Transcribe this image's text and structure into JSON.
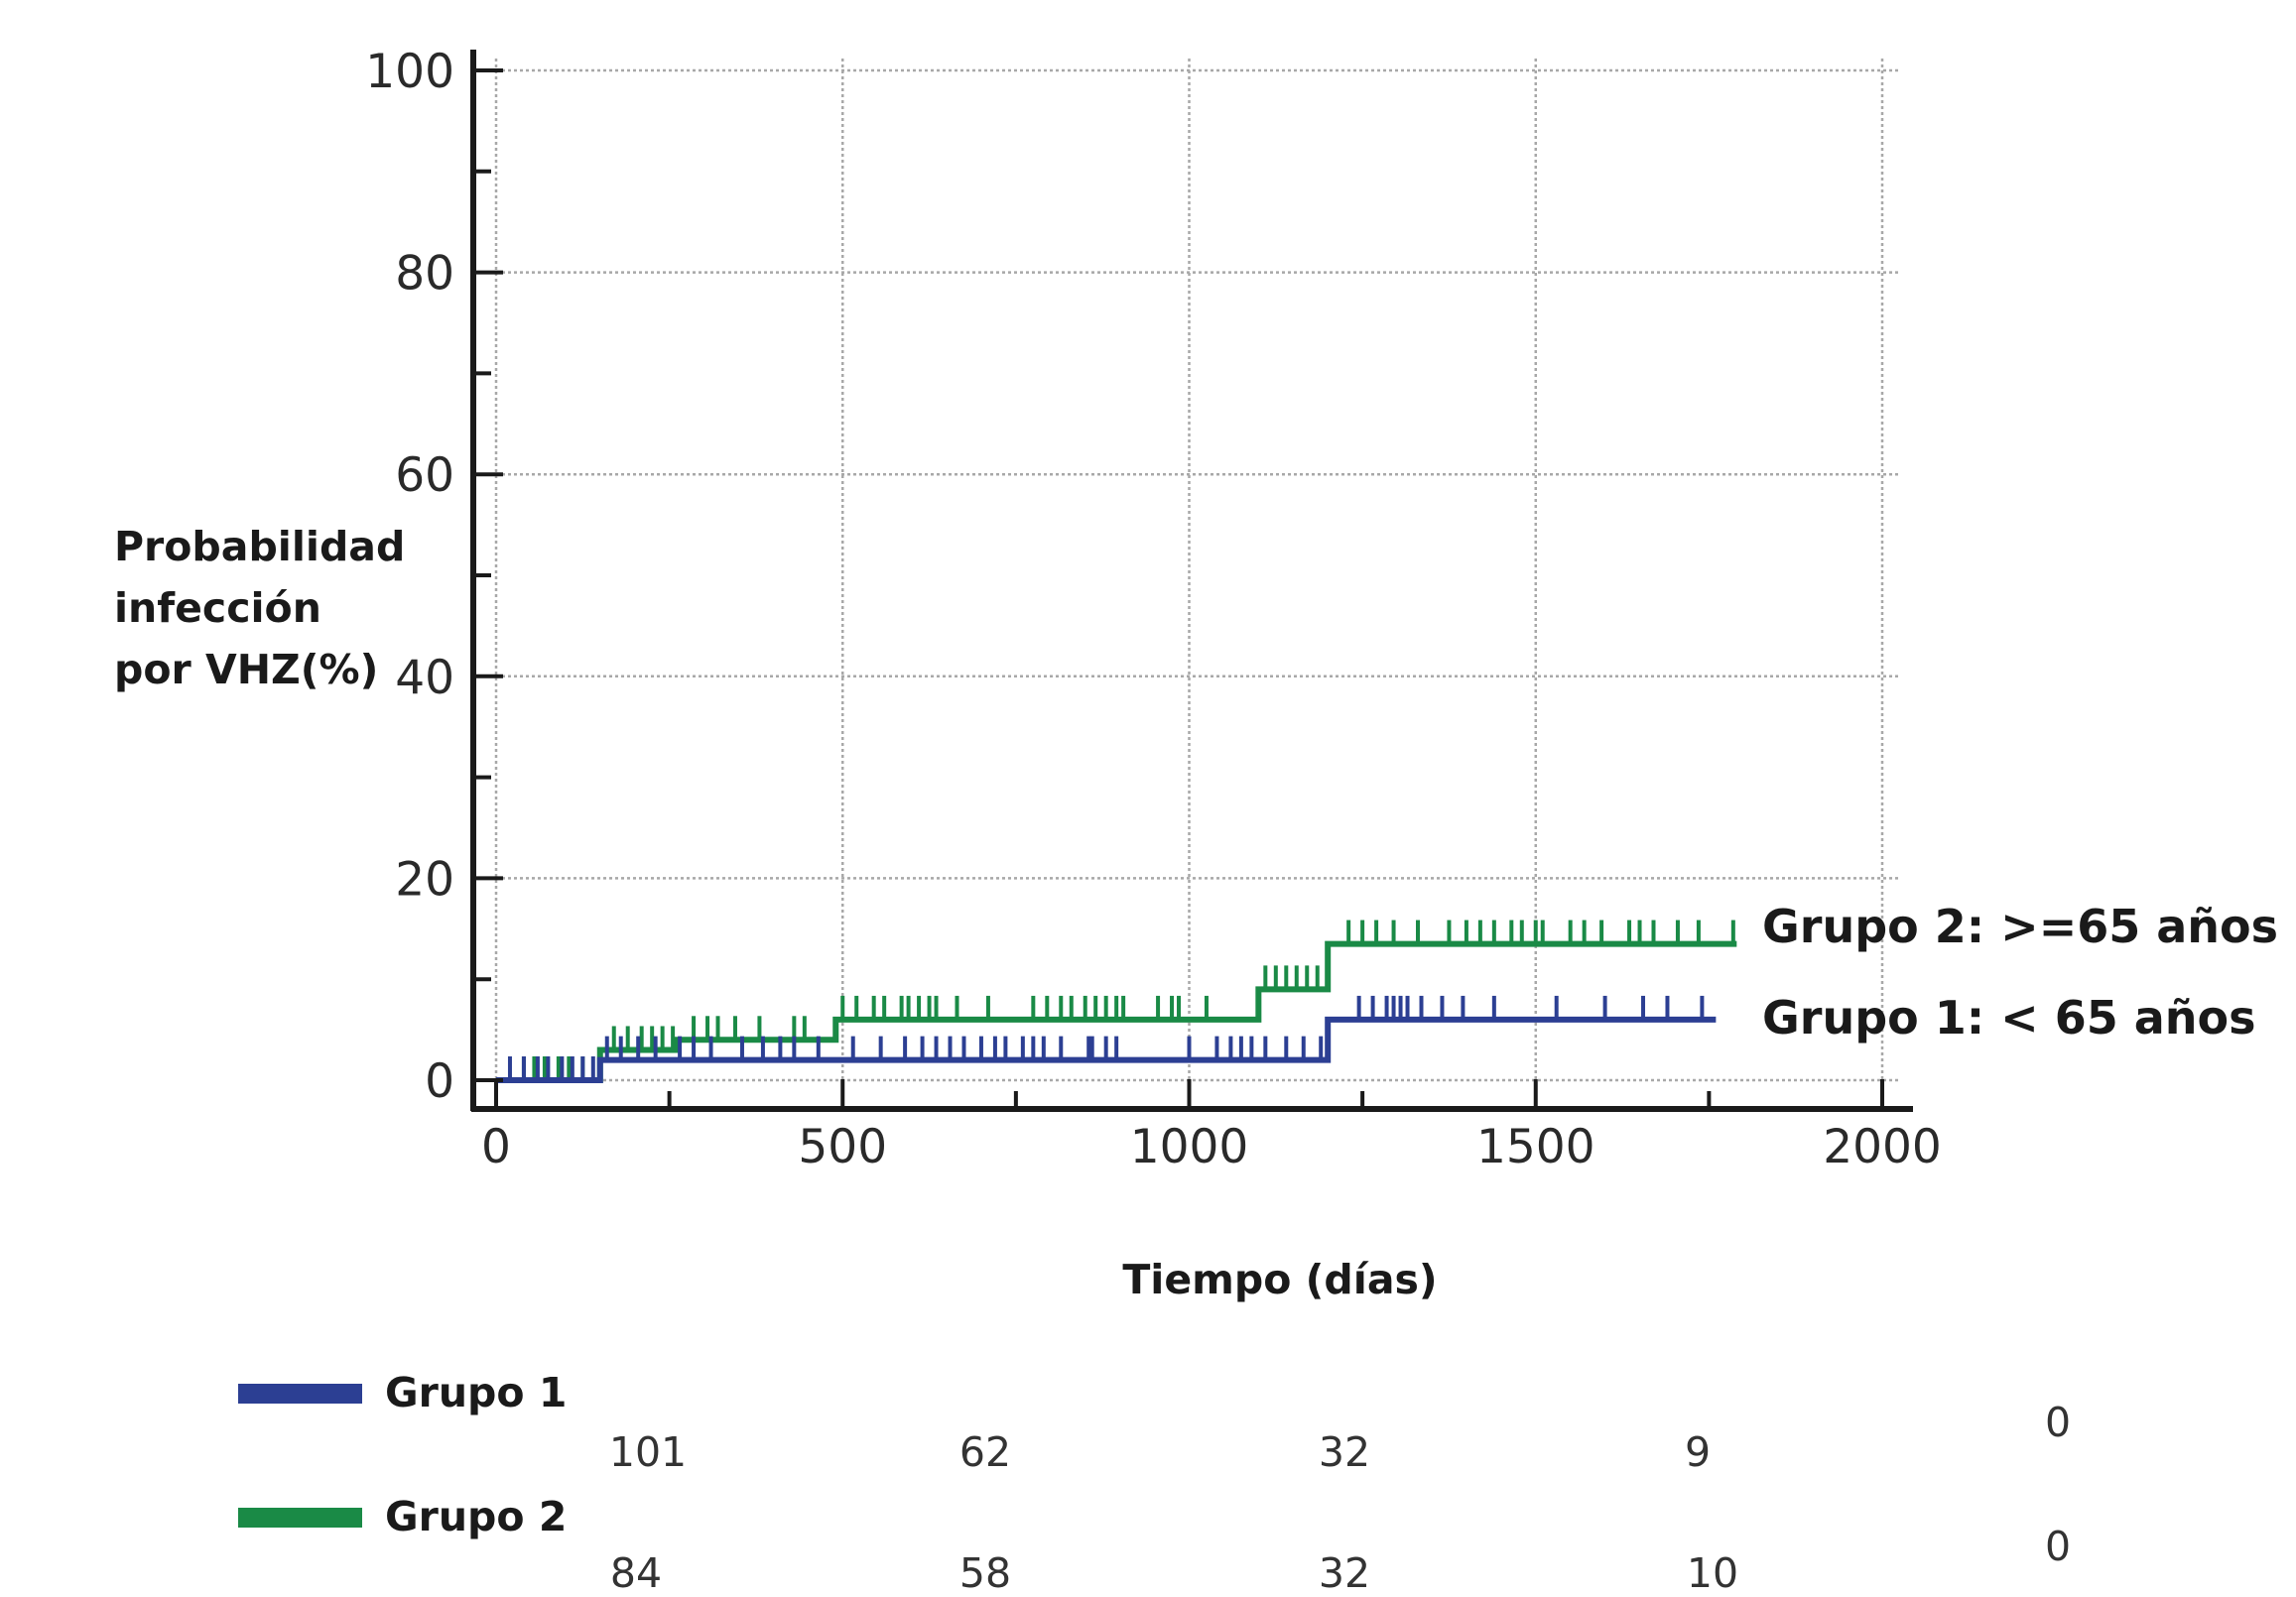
{
  "colors": {
    "grupo1": "#2c3f93",
    "grupo2": "#1a8a46",
    "axis": "#1a1a1a",
    "grid": "#a8a8a8"
  },
  "chart_data": {
    "type": "line",
    "subtype": "kaplan-meier-step",
    "ylabel": "Probabilidad\ninfección\npor VHZ(%)",
    "xlabel": "Tiempo (días)",
    "xlim": [
      0,
      2000
    ],
    "ylim": [
      0,
      100
    ],
    "xticks": [
      0,
      500,
      1000,
      1500,
      2000
    ],
    "xtick_labels": [
      "0",
      "500",
      "1000",
      "1500",
      "2000"
    ],
    "yticks": [
      0,
      20,
      40,
      60,
      80,
      100
    ],
    "ytick_labels": [
      "0",
      "20",
      "40",
      "60",
      "80",
      "100"
    ],
    "grid": true,
    "series": [
      {
        "name": "Grupo 1: < 65 años",
        "color": "#2c3f93",
        "steps": [
          [
            0,
            0
          ],
          [
            150,
            2
          ],
          [
            1200,
            2
          ],
          [
            1200,
            6
          ],
          [
            1760,
            6
          ]
        ],
        "censored": [
          {
            "x": [
              20,
              40,
              60,
              75,
              95,
              110,
              125,
              140
            ],
            "y": 0
          },
          {
            "x": [
              160,
              180,
              205,
              230,
              265,
              285,
              310,
              355,
              385,
              410,
              430,
              465,
              515,
              555,
              590,
              615,
              635,
              655,
              675,
              700,
              720,
              735,
              760,
              775,
              790,
              815,
              855,
              860,
              880,
              895,
              1000,
              1040,
              1060,
              1075,
              1090,
              1110,
              1140,
              1165,
              1190
            ],
            "y": 2
          },
          {
            "x": [
              1245,
              1265,
              1285,
              1295,
              1305,
              1315,
              1335,
              1365,
              1395,
              1440,
              1530,
              1600,
              1655,
              1690,
              1740
            ],
            "y": 6
          }
        ]
      },
      {
        "name": "Grupo 2: >=65 años",
        "color": "#1a8a46",
        "steps": [
          [
            0,
            0
          ],
          [
            150,
            0
          ],
          [
            150,
            3
          ],
          [
            260,
            3
          ],
          [
            260,
            4
          ],
          [
            490,
            4
          ],
          [
            490,
            6
          ],
          [
            1100,
            6
          ],
          [
            1100,
            9
          ],
          [
            1200,
            9
          ],
          [
            1200,
            13.5
          ],
          [
            1790,
            13.5
          ]
        ],
        "censored": [
          {
            "x": [
              40,
              55,
              70,
              90,
              105,
              125
            ],
            "y": 0
          },
          {
            "x": [
              170,
              190,
              210,
              225,
              240,
              255
            ],
            "y": 3
          },
          {
            "x": [
              285,
              305,
              320,
              345,
              380,
              430,
              445
            ],
            "y": 4
          },
          {
            "x": [
              500,
              520,
              545,
              560,
              585,
              595,
              610,
              625,
              635,
              665,
              710,
              775,
              795,
              815,
              830,
              850,
              865,
              880,
              895,
              905,
              955,
              975,
              985,
              1025
            ],
            "y": 6
          },
          {
            "x": [
              1110,
              1125,
              1140,
              1155,
              1170,
              1185
            ],
            "y": 9
          },
          {
            "x": [
              1230,
              1250,
              1270,
              1295,
              1330,
              1375,
              1400,
              1420,
              1440,
              1465,
              1480,
              1500,
              1510,
              1550,
              1570,
              1595,
              1635,
              1650,
              1670,
              1705,
              1735,
              1785
            ],
            "y": 13.5
          }
        ]
      }
    ],
    "annotations": [
      "Grupo 2: >=65 años",
      "Grupo 1: < 65 años"
    ]
  },
  "risk_table": {
    "rows": [
      {
        "name": "Grupo 1",
        "color": "#2c3f93",
        "values": [
          "101",
          "62",
          "32",
          "9",
          "0"
        ]
      },
      {
        "name": "Grupo 2",
        "color": "#1a8a46",
        "values": [
          "84",
          "58",
          "32",
          "10",
          "0"
        ]
      }
    ]
  }
}
